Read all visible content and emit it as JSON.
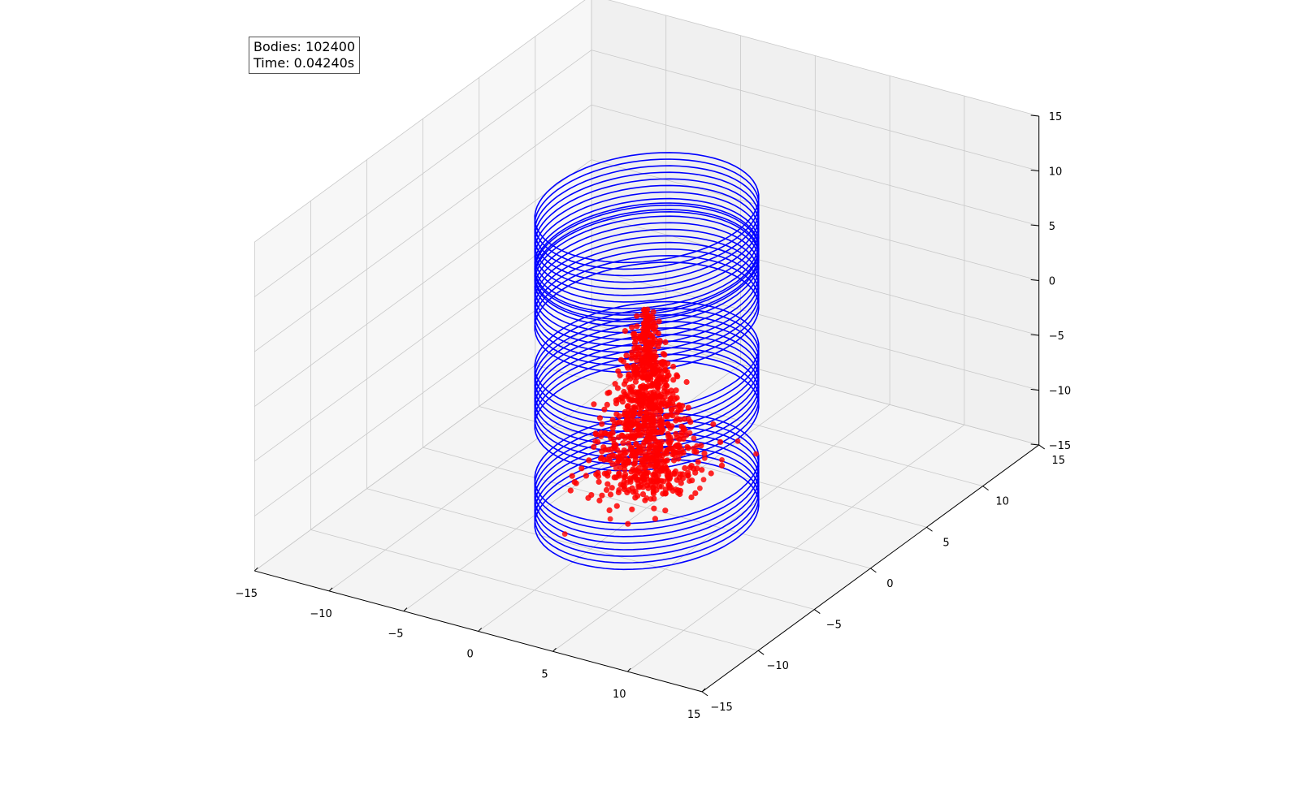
{
  "info": {
    "bodies_label": "Bodies: 102400",
    "time_label": "Time: 0.04240s"
  },
  "chart_data": {
    "type": "scatter3d",
    "title": "",
    "xlabel": "",
    "ylabel": "",
    "zlabel": "",
    "xlim": [
      -15,
      15
    ],
    "ylim": [
      -15,
      15
    ],
    "zlim": [
      -15,
      15
    ],
    "x_ticks": [
      "−15",
      "−10",
      "−5",
      "0",
      "5",
      "10",
      "15"
    ],
    "y_ticks": [
      "−15",
      "−10",
      "−5",
      "0",
      "5",
      "10",
      "15"
    ],
    "z_ticks": [
      "−15",
      "−10",
      "−5",
      "0",
      "5",
      "10",
      "15"
    ],
    "grid": true,
    "colors": {
      "rings": "#0000ff",
      "bodies": "#ff0000",
      "pane": "#f2f2f2",
      "grid": "#c8c8c8"
    },
    "ring_stacks": [
      {
        "radius": 6,
        "z": [
          7.0,
          7.6,
          8.2,
          8.8,
          9.4,
          10.0,
          10.6,
          11.2,
          11.8,
          12.4
        ]
      },
      {
        "radius": 6,
        "z": [
          2.4,
          3.0,
          3.6,
          4.2,
          4.8,
          5.4,
          6.0,
          6.6,
          7.2,
          7.8
        ]
      },
      {
        "radius": 6,
        "z": [
          -6.6,
          -6.0,
          -5.4,
          -4.8,
          -4.2,
          -3.6,
          -3.0,
          -2.4,
          -1.8,
          -1.2
        ]
      },
      {
        "radius": 6,
        "z": [
          -15.6,
          -15.0,
          -14.4,
          -13.8,
          -13.2,
          -12.6,
          -12.0,
          -11.4
        ]
      }
    ],
    "bodies_cloud": {
      "count": 102400,
      "center": [
        0,
        0
      ],
      "z_range": [
        -13,
        3
      ]
    }
  }
}
